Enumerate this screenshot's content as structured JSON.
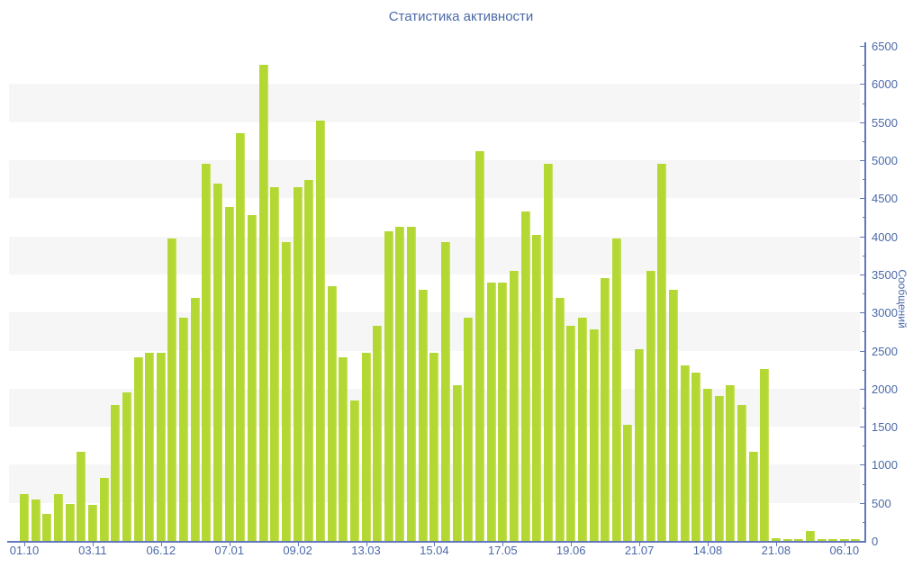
{
  "title": "Статистика активности",
  "colors": {
    "bar": "#b3d733",
    "bar_highlight": "#d2e470",
    "axis_line": "#6377bb",
    "axis_text": "#4b69a9",
    "band": "#f6f6f6",
    "background": "#ffffff"
  },
  "chart_data": {
    "type": "bar",
    "title": "Статистика активности",
    "xlabel": "",
    "ylabel": "Сообщений",
    "ylim": [
      0,
      6500
    ],
    "ytick_step": 500,
    "ytick_minor_step": 250,
    "y_tick_labels": [
      "0",
      "500",
      "1000",
      "1500",
      "2000",
      "2500",
      "3000",
      "3500",
      "4000",
      "4500",
      "5000",
      "5500",
      "6000",
      "6500"
    ],
    "grid": "horizontal-bands",
    "legend": "none",
    "x_tick_labels": [
      "01.10",
      "03.11",
      "06.12",
      "07.01",
      "09.02",
      "13.03",
      "15.04",
      "17.05",
      "19.06",
      "21.07",
      "14.08",
      "21.08",
      "06.10"
    ],
    "x_tick_bar_indices": [
      0,
      6,
      12,
      18,
      24,
      30,
      36,
      42,
      48,
      54,
      60,
      66,
      72
    ],
    "values": [
      620,
      540,
      350,
      610,
      490,
      1170,
      470,
      830,
      1790,
      1950,
      2410,
      2470,
      2470,
      3970,
      2930,
      3190,
      4950,
      4690,
      4380,
      5360,
      4280,
      6250,
      4640,
      3920,
      4640,
      4740,
      5520,
      3350,
      2410,
      1840,
      2470,
      2830,
      4070,
      4120,
      4120,
      3300,
      2470,
      3920,
      2050,
      2930,
      5120,
      3390,
      3390,
      3550,
      4330,
      4020,
      4950,
      3190,
      2830,
      2930,
      2780,
      3450,
      3970,
      1530,
      2520,
      3550,
      4950,
      3300,
      2310,
      2210,
      2000,
      1900,
      2050,
      1790,
      1170,
      2260,
      30,
      25,
      25,
      130,
      25,
      20,
      25,
      25
    ]
  }
}
